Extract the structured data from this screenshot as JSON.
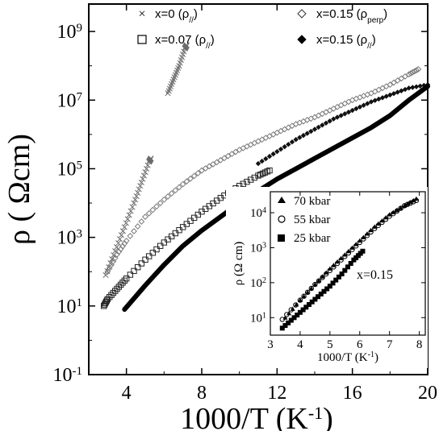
{
  "chart_data": [
    {
      "type": "scatter",
      "xlabel": "1000/T (K",
      "xlabel_sup": "-1",
      "xlabel_end": ")",
      "ylabel": "ρ ( Ωcm)",
      "xlim": [
        2,
        20
      ],
      "ylim_log10": [
        -1,
        9.8
      ],
      "y_scale": "log",
      "x_ticks": [
        4,
        8,
        12,
        16,
        20
      ],
      "x_tick_labels": [
        "4",
        "8",
        "12",
        "16",
        "20"
      ],
      "y_ticks_log10": [
        -1,
        1,
        3,
        5,
        7,
        9
      ],
      "y_tick_labels": [
        {
          "base": "10",
          "exp": "-1"
        },
        {
          "base": "10",
          "exp": "1"
        },
        {
          "base": "10",
          "exp": "3"
        },
        {
          "base": "10",
          "exp": "5"
        },
        {
          "base": "10",
          "exp": "7"
        },
        {
          "base": "10",
          "exp": "9"
        }
      ],
      "grid": false,
      "legend_placement": "top",
      "series": [
        {
          "name": "x=0 (ρ//)",
          "label_main": "x=0 (ρ",
          "label_sub": "//",
          "label_end": ")",
          "marker": "cross",
          "color": "#6a6a6a",
          "segments": [
            {
              "x": [
                2.9,
                3.4,
                3.9,
                4.4,
                4.8,
                5.2,
                5.3
              ],
              "log10y": [
                1.9,
                2.6,
                3.3,
                4.0,
                4.6,
                5.2,
                5.3
              ]
            },
            {
              "x": [
                6.2,
                6.5,
                6.8,
                7.1,
                7.2
              ],
              "log10y": [
                7.2,
                7.6,
                8.0,
                8.5,
                8.6
              ]
            }
          ]
        },
        {
          "name": "x=0.07 (ρ//)",
          "label_main": "x=0.07 (ρ",
          "label_sub": "//",
          "label_end": ")",
          "marker": "square-open",
          "color": "#222222",
          "x": [
            2.8,
            3.0,
            3.5,
            4.0,
            5.0,
            6.0,
            7.0,
            8.0,
            9.0,
            10.0,
            11.0,
            11.6
          ],
          "log10y": [
            1.0,
            1.2,
            1.5,
            1.8,
            2.35,
            2.85,
            3.3,
            3.75,
            4.15,
            4.5,
            4.8,
            4.95
          ]
        },
        {
          "name": "x=0.15 (ρperp)",
          "label_main": "x=0.15 (ρ",
          "label_sub": "perp",
          "label_end": ")",
          "marker": "diamond-open",
          "color": "#7a7a7a",
          "x": [
            3.0,
            3.5,
            4.0,
            5.0,
            6.0,
            7.0,
            8.0,
            9.0,
            10.0,
            11.0,
            12.0,
            13.0,
            14.0,
            15.0,
            16.0,
            17.0,
            18.0,
            19.0,
            19.5
          ],
          "log10y": [
            2.0,
            2.5,
            2.9,
            3.6,
            4.1,
            4.55,
            4.95,
            5.25,
            5.55,
            5.8,
            6.05,
            6.3,
            6.5,
            6.75,
            7.0,
            7.2,
            7.45,
            7.75,
            7.9
          ]
        },
        {
          "name": "x=0.15 (ρ//)",
          "label_main": "x=0.15 (ρ",
          "label_sub": "//",
          "label_end": ")",
          "marker": "diamond-filled",
          "color": "#111111",
          "x": [
            11.0,
            12.0,
            13.0,
            14.0,
            15.0,
            16.0,
            17.0,
            18.0,
            19.0,
            20.0
          ],
          "log10y": [
            5.15,
            5.5,
            5.85,
            6.15,
            6.45,
            6.7,
            6.95,
            7.15,
            7.35,
            7.45
          ]
        },
        {
          "name": "",
          "marker": "line-dense",
          "color": "#000000",
          "x": [
            3.9,
            5.0,
            6.0,
            7.0,
            8.0,
            9.0,
            10.0,
            11.0,
            12.0,
            13.0,
            14.0,
            15.0,
            16.0,
            17.0,
            18.0,
            19.0,
            20.0
          ],
          "log10y": [
            0.9,
            1.6,
            2.2,
            2.75,
            3.2,
            3.6,
            4.0,
            4.35,
            4.7,
            5.0,
            5.3,
            5.6,
            5.9,
            6.2,
            6.55,
            7.0,
            7.4
          ]
        }
      ]
    },
    {
      "type": "scatter",
      "xlabel": "1000/T (K",
      "xlabel_sup": "-1",
      "xlabel_end": ")",
      "ylabel": "ρ (Ω cm)",
      "xlim": [
        3,
        8.2
      ],
      "ylim_log10": [
        0.5,
        4.6
      ],
      "y_scale": "log",
      "x_ticks": [
        3,
        4,
        5,
        6,
        7,
        8
      ],
      "x_tick_labels": [
        "3",
        "4",
        "5",
        "6",
        "7",
        "8"
      ],
      "y_ticks_log10": [
        1,
        2,
        3,
        4
      ],
      "y_tick_labels": [
        {
          "base": "10",
          "exp": "1"
        },
        {
          "base": "10",
          "exp": "2"
        },
        {
          "base": "10",
          "exp": "3"
        },
        {
          "base": "10",
          "exp": "4"
        }
      ],
      "annotation": "x=0.15",
      "grid": false,
      "legend_placement": "top-left",
      "series": [
        {
          "name": "70 kbar",
          "marker": "triangle-filled",
          "color": "#000000",
          "x": [
            3.5,
            4.0,
            4.5,
            5.0,
            5.5,
            6.0,
            6.5,
            7.0,
            7.5,
            7.9
          ],
          "log10y": [
            1.0,
            1.5,
            1.95,
            2.4,
            2.8,
            3.2,
            3.6,
            3.95,
            4.2,
            4.4
          ]
        },
        {
          "name": "55 kbar",
          "marker": "circle-open",
          "color": "#000000",
          "x": [
            3.4,
            4.0,
            4.5,
            5.0,
            5.5,
            6.0,
            6.5,
            7.0,
            7.5,
            7.9
          ],
          "log10y": [
            0.95,
            1.5,
            1.95,
            2.35,
            2.75,
            3.15,
            3.55,
            3.9,
            4.2,
            4.35
          ]
        },
        {
          "name": "25 kbar",
          "marker": "square-filled",
          "color": "#000000",
          "x": [
            3.4,
            3.8,
            4.2,
            4.6,
            5.0,
            5.4,
            5.8,
            6.1
          ],
          "log10y": [
            0.7,
            1.0,
            1.3,
            1.6,
            1.9,
            2.25,
            2.65,
            2.9
          ]
        }
      ]
    }
  ]
}
